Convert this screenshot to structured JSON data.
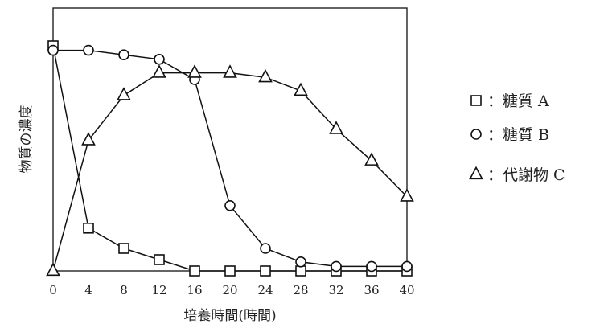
{
  "chart_data": {
    "type": "line",
    "xlabel": "培養時間(時間)",
    "ylabel": "物質の濃度",
    "x": [
      0,
      4,
      8,
      12,
      16,
      20,
      24,
      28,
      32,
      36,
      40
    ],
    "xticks": [
      "0",
      "4",
      "8",
      "12",
      "16",
      "20",
      "24",
      "28",
      "32",
      "36",
      "40"
    ],
    "xlim": [
      0,
      40
    ],
    "ylim": [
      0,
      1
    ],
    "y_ticks_shown": false,
    "grid": false,
    "legend_position": "right",
    "series": [
      {
        "name": "：糖質 A",
        "marker": "square",
        "values": [
          1.0,
          0.19,
          0.1,
          0.05,
          0.0,
          0.0,
          0.0,
          0.0,
          0.0,
          0.0,
          0.0
        ]
      },
      {
        "name": "：糖質 B",
        "marker": "circle",
        "values": [
          0.98,
          0.98,
          0.96,
          0.94,
          0.85,
          0.29,
          0.1,
          0.04,
          0.02,
          0.02,
          0.02
        ]
      },
      {
        "name": "：代謝物 C",
        "marker": "triangle",
        "values": [
          0.0,
          0.58,
          0.78,
          0.88,
          0.88,
          0.88,
          0.86,
          0.8,
          0.63,
          0.49,
          0.33
        ]
      }
    ]
  }
}
